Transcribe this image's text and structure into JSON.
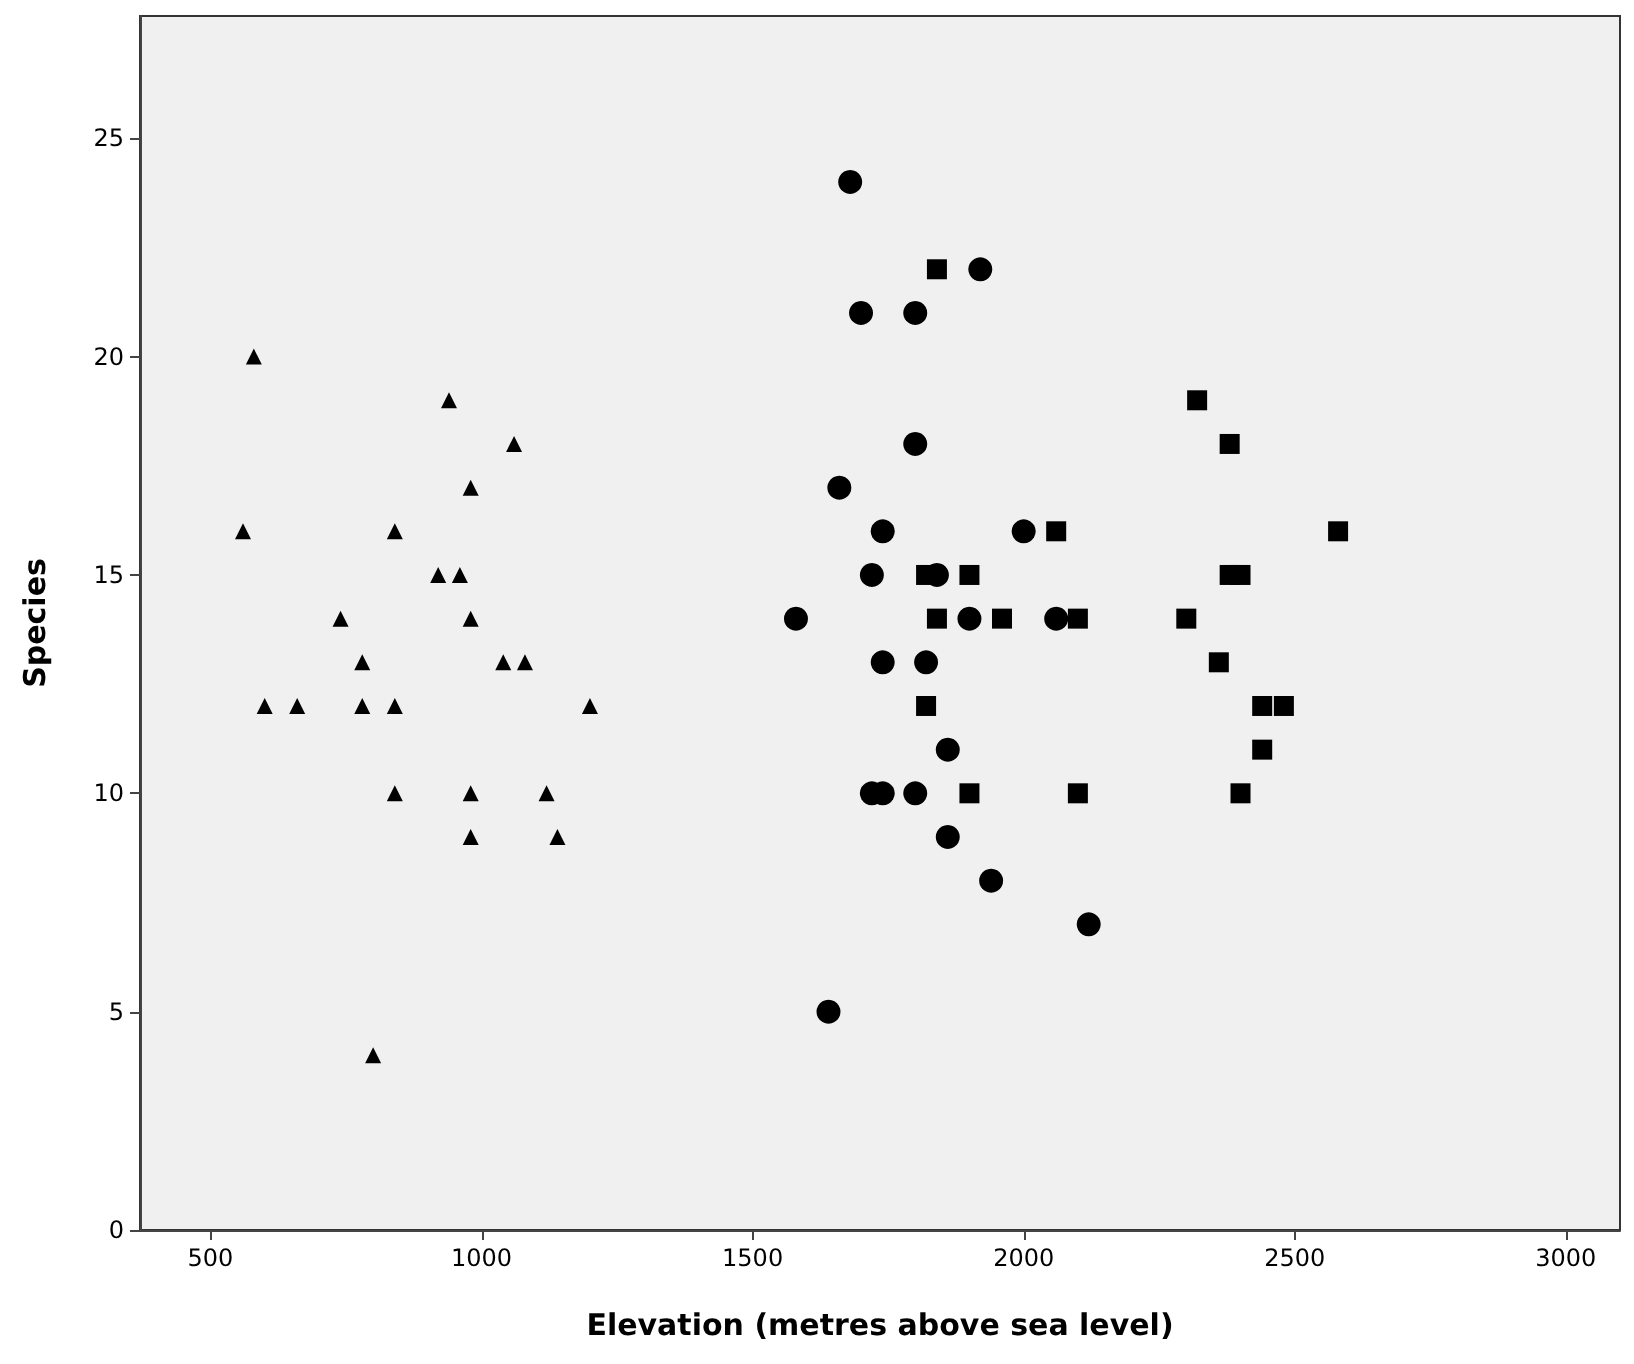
{
  "chart_data": {
    "type": "scatter",
    "xlabel": "Elevation (metres above sea level)",
    "ylabel": "Species",
    "xlim": [
      370,
      3100
    ],
    "xticks": [
      500,
      1000,
      1500,
      2000,
      2500,
      3000
    ],
    "ylim": [
      0,
      27.8
    ],
    "yticks": [
      0,
      5,
      10,
      15,
      20,
      25
    ],
    "grid": false,
    "series": [
      {
        "color": "#000000",
        "marker": "triangle",
        "x": [
          580,
          560,
          600,
          660,
          740,
          780,
          780,
          800,
          840,
          840,
          840,
          920,
          940,
          960,
          980,
          980,
          980,
          980,
          1040,
          1060,
          1080,
          1120,
          1140,
          1200
        ],
        "values": [
          20,
          16,
          12,
          12,
          14,
          13,
          12,
          4,
          16,
          12,
          10,
          15,
          19,
          15,
          17,
          14,
          10,
          9,
          13,
          18,
          13,
          10,
          9,
          12
        ]
      },
      {
        "color": "#000000",
        "marker": "circle",
        "x": [
          1680,
          1700,
          1800,
          1920,
          1800,
          1660,
          1740,
          2000,
          1720,
          1840,
          1580,
          1900,
          2060,
          1740,
          1820,
          1860,
          1720,
          1740,
          1800,
          1860,
          1940,
          2120,
          1640
        ],
        "values": [
          24,
          21,
          21,
          22,
          18,
          17,
          16,
          16,
          15,
          15,
          14,
          14,
          14,
          13,
          13,
          11,
          10,
          10,
          10,
          9,
          8,
          7,
          5
        ]
      },
      {
        "color": "#000000",
        "marker": "square",
        "x": [
          1840,
          2320,
          2380,
          2060,
          2580,
          1820,
          1900,
          2380,
          2400,
          1840,
          1960,
          2100,
          2300,
          2360,
          1820,
          2440,
          2480,
          2440,
          1900,
          2100,
          2400
        ],
        "values": [
          22,
          19,
          18,
          16,
          16,
          15,
          15,
          15,
          15,
          14,
          14,
          14,
          14,
          13,
          12,
          12,
          12,
          11,
          10,
          10,
          10
        ]
      }
    ]
  }
}
